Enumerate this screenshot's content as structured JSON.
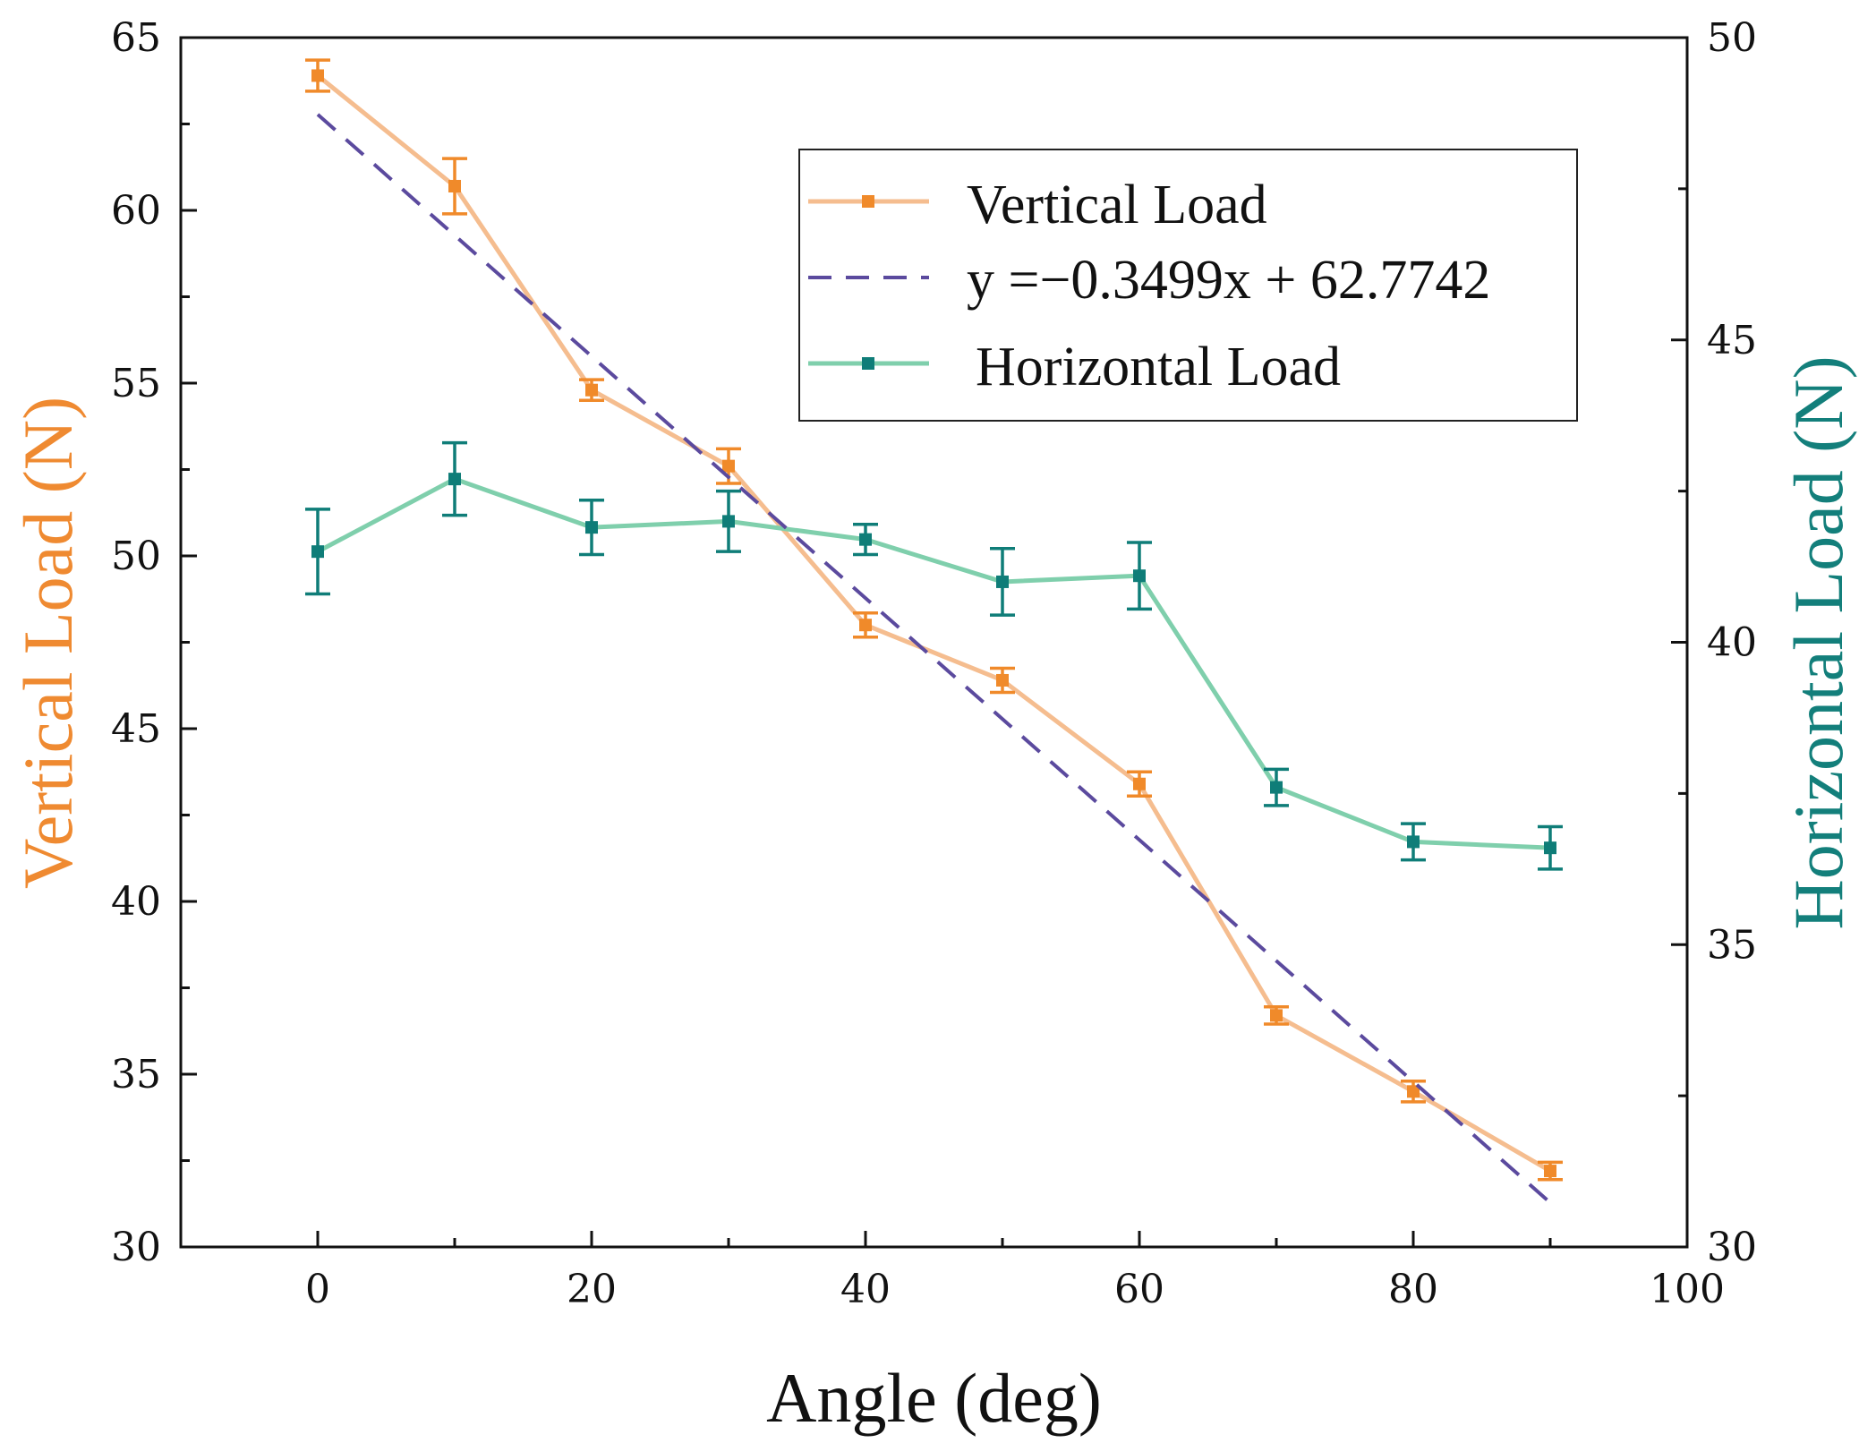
{
  "chart_data": {
    "type": "line",
    "xlabel": "Angle (deg)",
    "ylabel_left": "Vertical Load (N)",
    "ylabel_right": "Horizontal Load (N)",
    "xlim": [
      -10,
      100
    ],
    "ylim_left": [
      30,
      65
    ],
    "ylim_right": [
      30,
      50
    ],
    "x_ticks": [
      0,
      20,
      40,
      60,
      80,
      100
    ],
    "y_left_ticks": [
      30,
      35,
      40,
      45,
      50,
      55,
      60,
      65
    ],
    "y_right_ticks": [
      30,
      35,
      40,
      45,
      50
    ],
    "grid": false,
    "legend_position": "top-right",
    "colors": {
      "vertical_line": "#f5bd8f",
      "vertical_marker": "#f08a2a",
      "vertical_axis_title": "#ef8a31",
      "horizontal_line": "#7fcfac",
      "horizontal_marker": "#0f7d78",
      "horizontal_axis_title": "#137f7b",
      "fit_line": "#5b4a9e"
    },
    "series": [
      {
        "name": "Vertical Load",
        "axis": "left",
        "x": [
          0,
          10,
          20,
          30,
          40,
          50,
          60,
          70,
          80,
          90
        ],
        "values": [
          63.9,
          60.7,
          54.8,
          52.6,
          48.0,
          46.4,
          43.4,
          36.7,
          34.5,
          32.2
        ],
        "errors": [
          0.45,
          0.8,
          0.3,
          0.5,
          0.35,
          0.35,
          0.35,
          0.25,
          0.3,
          0.25
        ]
      },
      {
        "name": "y =−0.3499x + 62.7742",
        "axis": "left",
        "type": "fit",
        "slope": -0.3499,
        "intercept": 62.7742,
        "x_range": [
          0,
          90
        ]
      },
      {
        "name": "Horizontal Load",
        "axis": "right",
        "x": [
          0,
          10,
          20,
          30,
          40,
          50,
          60,
          70,
          80,
          90
        ],
        "values": [
          41.5,
          42.7,
          41.9,
          42.0,
          41.7,
          41.0,
          41.1,
          37.6,
          36.7,
          36.6
        ],
        "errors": [
          0.7,
          0.6,
          0.45,
          0.5,
          0.25,
          0.55,
          0.55,
          0.3,
          0.3,
          0.35
        ]
      }
    ]
  }
}
